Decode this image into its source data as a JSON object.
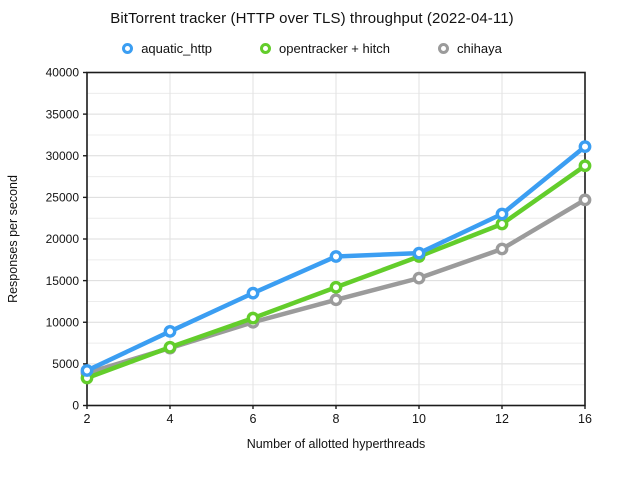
{
  "title": "BitTorrent tracker (HTTP over TLS) throughput (2022-04-11)",
  "chart_data": {
    "type": "line",
    "title": "BitTorrent tracker (HTTP over TLS) throughput (2022-04-11)",
    "xlabel": "Number of allotted hyperthreads",
    "ylabel": "Responses per second",
    "categories": [
      2,
      4,
      6,
      8,
      10,
      12,
      16
    ],
    "x_tick_labels": [
      "2",
      "4",
      "6",
      "8",
      "10",
      "12",
      "16"
    ],
    "ylim": [
      0,
      40000
    ],
    "y_tick_step": 5000,
    "y_minor_step": 2500,
    "y_tick_labels": [
      "0",
      "5000",
      "10000",
      "15000",
      "20000",
      "25000",
      "30000",
      "35000",
      "40000"
    ],
    "grid": true,
    "legend_position": "top",
    "series": [
      {
        "name": "aquatic_http",
        "color": "#3b9ef2",
        "values": [
          4200,
          8900,
          13500,
          17900,
          18300,
          23000,
          31100
        ]
      },
      {
        "name": "opentracker + hitch",
        "color": "#63cd2b",
        "values": [
          3300,
          7000,
          10500,
          14200,
          17900,
          21800,
          28800
        ]
      },
      {
        "name": "chihaya",
        "color": "#9b9b9b",
        "values": [
          3900,
          6900,
          10000,
          12700,
          15300,
          18800,
          24700
        ]
      }
    ],
    "frame_color": "#1c1c1c",
    "grid_major_color": "#dcdcdc",
    "grid_minor_color": "#ececec",
    "grid_vertical_color": "#e2e2e2"
  }
}
